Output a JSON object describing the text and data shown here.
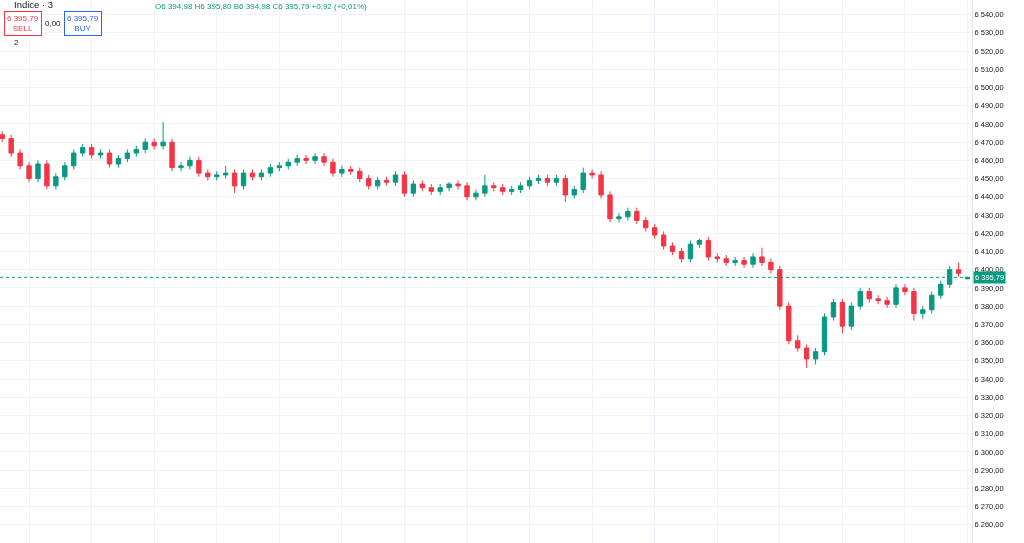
{
  "chart_data": {
    "type": "candlestick",
    "title": "Indice · 3",
    "annotations": [
      "O6 394,98 H6 395,80 B6 394,98 C6 395,79 +0,92 (+0,01%)",
      "6 395,79\nSELL",
      "0,00",
      "6 395,79\nBUY",
      "2"
    ],
    "categories": [
      null,
      null,
      null,
      null,
      null,
      null,
      null,
      null,
      null,
      null,
      null,
      null,
      null,
      null,
      null,
      null,
      null,
      null,
      null,
      null,
      null,
      null,
      null,
      null,
      null,
      null,
      null,
      null,
      null,
      null,
      null,
      null,
      null,
      null,
      null,
      null,
      null,
      null,
      null,
      null,
      null,
      null,
      null,
      null,
      null,
      null,
      null,
      null,
      null,
      null,
      null,
      null,
      null,
      null,
      null,
      null,
      null,
      null,
      null,
      null,
      null,
      null,
      null,
      null,
      null,
      null,
      null,
      null,
      null,
      null,
      null,
      null,
      null,
      null,
      null,
      null,
      null,
      null,
      null,
      null,
      null,
      null,
      null,
      null,
      null,
      null,
      null,
      null,
      null,
      null,
      null,
      null,
      null,
      null,
      null,
      null,
      null,
      null,
      null,
      null,
      null,
      null,
      null,
      null,
      null,
      null,
      null,
      null,
      null
    ],
    "ohlc": [
      [
        6474,
        6476,
        6470,
        6472
      ],
      [
        6472,
        6474,
        6462,
        6464
      ],
      [
        6464,
        6466,
        6455,
        6457
      ],
      [
        6457,
        6459,
        6448,
        6450
      ],
      [
        6450,
        6460,
        6448,
        6458
      ],
      [
        6458,
        6460,
        6444,
        6446
      ],
      [
        6446,
        6453,
        6444,
        6451
      ],
      [
        6451,
        6459,
        6449,
        6457
      ],
      [
        6457,
        6466,
        6455,
        6464
      ],
      [
        6464,
        6469,
        6462,
        6467
      ],
      [
        6467,
        6469,
        6461,
        6463
      ],
      [
        6463,
        6466,
        6461,
        6464
      ],
      [
        6464,
        6466,
        6456,
        6458
      ],
      [
        6458,
        6463,
        6456,
        6461
      ],
      [
        6461,
        6466,
        6459,
        6464
      ],
      [
        6464,
        6468,
        6462,
        6466
      ],
      [
        6466,
        6472,
        6464,
        6470
      ],
      [
        6470,
        6472,
        6466,
        6468
      ],
      [
        6468,
        6481,
        6466,
        6470
      ],
      [
        6470,
        6472,
        6454,
        6456
      ],
      [
        6456,
        6459,
        6454,
        6457
      ],
      [
        6457,
        6462,
        6455,
        6460
      ],
      [
        6460,
        6462,
        6451,
        6453
      ],
      [
        6453,
        6455,
        6449,
        6451
      ],
      [
        6451,
        6454,
        6449,
        6452
      ],
      [
        6452,
        6457,
        6450,
        6453
      ],
      [
        6453,
        6455,
        6442,
        6446
      ],
      [
        6446,
        6455,
        6444,
        6453
      ],
      [
        6453,
        6455,
        6449,
        6451
      ],
      [
        6451,
        6455,
        6449,
        6453
      ],
      [
        6453,
        6458,
        6451,
        6456
      ],
      [
        6456,
        6459,
        6454,
        6457
      ],
      [
        6457,
        6461,
        6455,
        6459
      ],
      [
        6459,
        6463,
        6457,
        6461
      ],
      [
        6461,
        6463,
        6458,
        6460
      ],
      [
        6460,
        6464,
        6458,
        6462
      ],
      [
        6462,
        6464,
        6457,
        6459
      ],
      [
        6459,
        6461,
        6451,
        6453
      ],
      [
        6453,
        6457,
        6451,
        6455
      ],
      [
        6455,
        6457,
        6452,
        6454
      ],
      [
        6454,
        6456,
        6448,
        6450
      ],
      [
        6450,
        6452,
        6444,
        6446
      ],
      [
        6446,
        6451,
        6444,
        6449
      ],
      [
        6449,
        6451,
        6446,
        6448
      ],
      [
        6448,
        6454,
        6446,
        6452
      ],
      [
        6452,
        6454,
        6440,
        6442
      ],
      [
        6442,
        6449,
        6440,
        6447
      ],
      [
        6447,
        6449,
        6443,
        6445
      ],
      [
        6445,
        6447,
        6441,
        6443
      ],
      [
        6443,
        6447,
        6441,
        6445
      ],
      [
        6445,
        6448,
        6443,
        6447
      ],
      [
        6447,
        6449,
        6444,
        6446
      ],
      [
        6446,
        6448,
        6438,
        6440
      ],
      [
        6440,
        6444,
        6438,
        6442
      ],
      [
        6442,
        6452,
        6440,
        6446
      ],
      [
        6446,
        6448,
        6443,
        6445
      ],
      [
        6445,
        6447,
        6441,
        6443
      ],
      [
        6443,
        6446,
        6441,
        6444
      ],
      [
        6444,
        6448,
        6442,
        6446
      ],
      [
        6446,
        6451,
        6444,
        6449
      ],
      [
        6449,
        6452,
        6447,
        6450
      ],
      [
        6450,
        6452,
        6446,
        6448
      ],
      [
        6448,
        6452,
        6446,
        6450
      ],
      [
        6450,
        6452,
        6437,
        6441
      ],
      [
        6441,
        6446,
        6439,
        6444
      ],
      [
        6444,
        6456,
        6442,
        6453
      ],
      [
        6453,
        6455,
        6450,
        6452
      ],
      [
        6452,
        6454,
        6439,
        6441
      ],
      [
        6441,
        6443,
        6426,
        6428
      ],
      [
        6428,
        6431,
        6426,
        6429
      ],
      [
        6429,
        6434,
        6427,
        6432
      ],
      [
        6432,
        6434,
        6425,
        6427
      ],
      [
        6427,
        6429,
        6421,
        6423
      ],
      [
        6423,
        6425,
        6417,
        6419
      ],
      [
        6419,
        6421,
        6411,
        6413
      ],
      [
        6413,
        6415,
        6408,
        6410
      ],
      [
        6410,
        6412,
        6404,
        6406
      ],
      [
        6406,
        6416,
        6404,
        6414
      ],
      [
        6414,
        6417,
        6412,
        6416
      ],
      [
        6416,
        6418,
        6405,
        6407
      ],
      [
        6407,
        6409,
        6404,
        6406
      ],
      [
        6406,
        6408,
        6402,
        6404
      ],
      [
        6404,
        6407,
        6402,
        6405
      ],
      [
        6405,
        6407,
        6401,
        6403
      ],
      [
        6403,
        6409,
        6401,
        6407
      ],
      [
        6407,
        6412,
        6402,
        6404
      ],
      [
        6404,
        6406,
        6398,
        6400
      ],
      [
        6400,
        6402,
        6378,
        6380
      ],
      [
        6380,
        6382,
        6359,
        6361
      ],
      [
        6361,
        6364,
        6355,
        6357
      ],
      [
        6357,
        6359,
        6346,
        6351
      ],
      [
        6351,
        6357,
        6348,
        6355
      ],
      [
        6355,
        6376,
        6353,
        6374
      ],
      [
        6374,
        6384,
        6372,
        6382
      ],
      [
        6382,
        6384,
        6365,
        6369
      ],
      [
        6369,
        6382,
        6367,
        6380
      ],
      [
        6380,
        6390,
        6378,
        6388
      ],
      [
        6388,
        6390,
        6382,
        6384
      ],
      [
        6384,
        6386,
        6381,
        6383
      ],
      [
        6383,
        6385,
        6379,
        6381
      ],
      [
        6381,
        6392,
        6379,
        6390
      ],
      [
        6390,
        6392,
        6386,
        6388
      ],
      [
        6388,
        6390,
        6372,
        6376
      ],
      [
        6376,
        6380,
        6373,
        6378
      ],
      [
        6378,
        6388,
        6376,
        6386
      ],
      [
        6386,
        6394,
        6384,
        6392
      ],
      [
        6392,
        6402,
        6390,
        6400
      ],
      [
        6400,
        6404,
        6396,
        6398
      ],
      [
        6394.98,
        6395.8,
        6394.98,
        6395.79
      ]
    ],
    "ylim": [
      6250,
      6548
    ],
    "yticks": [
      {
        "value": 6260,
        "label": "6 260,00"
      },
      {
        "value": 6270,
        "label": "6 270,00"
      },
      {
        "value": 6280,
        "label": "6 280,00"
      },
      {
        "value": 6290,
        "label": "6 290,00"
      },
      {
        "value": 6300,
        "label": "6 300,00"
      },
      {
        "value": 6310,
        "label": "6 310,00"
      },
      {
        "value": 6320,
        "label": "6 320,00"
      },
      {
        "value": 6330,
        "label": "6 330,00"
      },
      {
        "value": 6340,
        "label": "6 340,00"
      },
      {
        "value": 6350,
        "label": "6 350,00"
      },
      {
        "value": 6360,
        "label": "6 360,00"
      },
      {
        "value": 6370,
        "label": "6 370,00"
      },
      {
        "value": 6380,
        "label": "6 380,00"
      },
      {
        "value": 6390,
        "label": "6 390,00"
      },
      {
        "value": 6400,
        "label": "6 400,00"
      },
      {
        "value": 6410,
        "label": "6 410,00"
      },
      {
        "value": 6420,
        "label": "6 420,00"
      },
      {
        "value": 6430,
        "label": "6 430,00"
      },
      {
        "value": 6440,
        "label": "6 440,00"
      },
      {
        "value": 6450,
        "label": "6 450,00"
      },
      {
        "value": 6460,
        "label": "6 460,00"
      },
      {
        "value": 6470,
        "label": "6 470,00"
      },
      {
        "value": 6480,
        "label": "6 480,00"
      },
      {
        "value": 6490,
        "label": "6 490,00"
      },
      {
        "value": 6500,
        "label": "6 500,00"
      },
      {
        "value": 6510,
        "label": "6 510,00"
      },
      {
        "value": 6520,
        "label": "6 520,00"
      },
      {
        "value": 6530,
        "label": "6 530,00"
      },
      {
        "value": 6540,
        "label": "6 540,00"
      }
    ],
    "ref_lines": [
      {
        "axis": "y",
        "value": 6395.79,
        "label": "6 395,79",
        "color": "#089981",
        "line_style": "dotted"
      }
    ],
    "grid": true
  }
}
